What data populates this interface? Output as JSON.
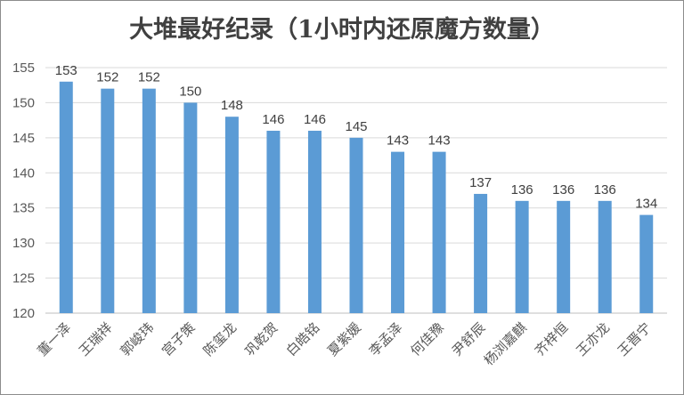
{
  "chart_data": {
    "type": "bar",
    "title": "大堆最好纪录（1小时内还原魔方数量）",
    "categories": [
      "董一泽",
      "王瑞祥",
      "郭峻玮",
      "宫子策",
      "陈玺龙",
      "巩乾贺",
      "白皓铭",
      "夏紫媛",
      "李孟泽",
      "何佳豫",
      "尹舒辰",
      "杨浏嘉麒",
      "齐梓恒",
      "王亦龙",
      "王晋宁"
    ],
    "values": [
      153,
      152,
      152,
      150,
      148,
      146,
      146,
      145,
      143,
      143,
      137,
      136,
      136,
      136,
      134
    ],
    "ylim": [
      120,
      155
    ],
    "yticks": [
      120,
      125,
      130,
      135,
      140,
      145,
      150,
      155
    ],
    "grid": true,
    "data_labels": true,
    "xlabel": "",
    "ylabel": "",
    "colors": {
      "bar": "#5b9bd5",
      "grid": "#d9d9d9"
    }
  }
}
